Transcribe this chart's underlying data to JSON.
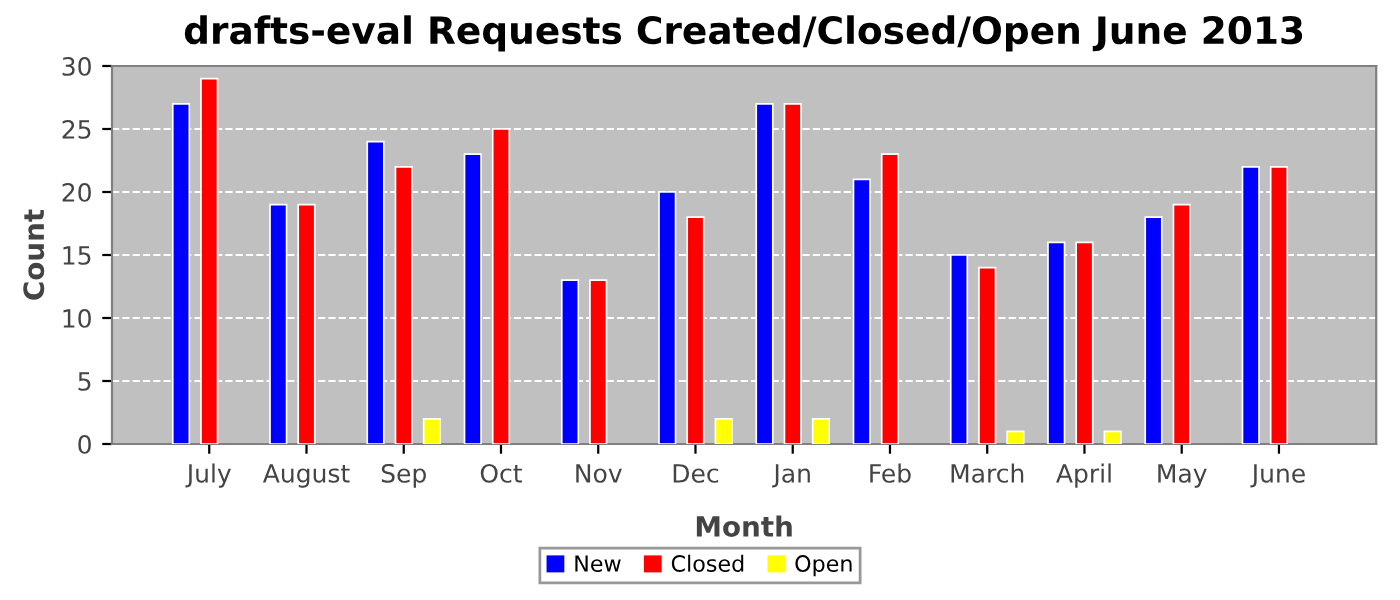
{
  "chart_data": {
    "type": "bar",
    "title": "drafts-eval Requests Created/Closed/Open June 2013",
    "xlabel": "Month",
    "ylabel": "Count",
    "categories": [
      "July",
      "August",
      "Sep",
      "Oct",
      "Nov",
      "Dec",
      "Jan",
      "Feb",
      "March",
      "April",
      "May",
      "June"
    ],
    "series": [
      {
        "name": "New",
        "color": "#0000ff",
        "values": [
          27,
          19,
          24,
          23,
          13,
          20,
          27,
          21,
          15,
          16,
          18,
          22
        ]
      },
      {
        "name": "Closed",
        "color": "#ff0000",
        "values": [
          29,
          19,
          22,
          25,
          13,
          18,
          27,
          23,
          14,
          16,
          19,
          22
        ]
      },
      {
        "name": "Open",
        "color": "#ffff00",
        "values": [
          0,
          0,
          2,
          0,
          0,
          2,
          2,
          0,
          1,
          1,
          0,
          0
        ]
      }
    ],
    "ylim": [
      0,
      30
    ],
    "yticks": [
      0,
      5,
      10,
      15,
      20,
      25,
      30
    ],
    "grid": "y",
    "legend": "bottom"
  }
}
